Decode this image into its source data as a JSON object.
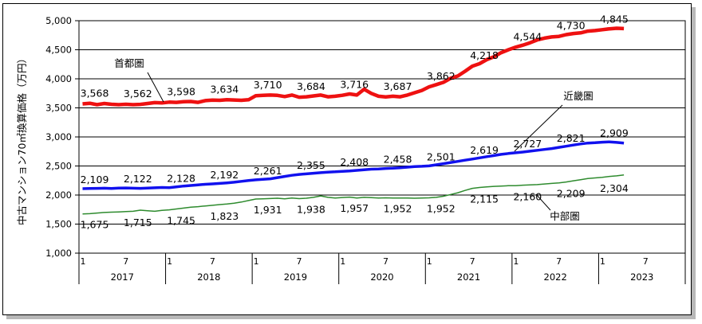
{
  "chart_data": {
    "type": "line",
    "title": "",
    "ylabel": "中古マンション70㎡換算価格（万円）",
    "xlabel": "",
    "ylim": [
      1000,
      5000
    ],
    "yticks": [
      1000,
      1500,
      2000,
      2500,
      3000,
      3500,
      4000,
      4500,
      5000
    ],
    "ytick_labels": [
      "1,000",
      "1,500",
      "2,000",
      "2,500",
      "3,000",
      "3,500",
      "4,000",
      "4,500",
      "5,000"
    ],
    "x_start": "2017-01",
    "month_ticks": [
      "1",
      "7",
      "1",
      "7",
      "1",
      "7",
      "1",
      "7",
      "1",
      "7",
      "1",
      "7",
      "1",
      "7"
    ],
    "years": [
      "2017",
      "2018",
      "2019",
      "2020",
      "2021",
      "2022",
      "2023"
    ],
    "grid": "horizontal",
    "series": [
      {
        "name": "首都圏",
        "color": "#ee1111",
        "values": [
          3568,
          3580,
          3555,
          3575,
          3562,
          3555,
          3562,
          3555,
          3560,
          3575,
          3590,
          3585,
          3598,
          3595,
          3605,
          3610,
          3595,
          3625,
          3634,
          3630,
          3640,
          3635,
          3630,
          3640,
          3710,
          3715,
          3720,
          3715,
          3695,
          3720,
          3684,
          3690,
          3705,
          3720,
          3690,
          3700,
          3716,
          3740,
          3720,
          3820,
          3750,
          3700,
          3687,
          3700,
          3690,
          3720,
          3760,
          3800,
          3862,
          3900,
          3940,
          4010,
          4050,
          4130,
          4218,
          4260,
          4330,
          4380,
          4450,
          4500,
          4544,
          4580,
          4620,
          4670,
          4700,
          4720,
          4730,
          4760,
          4780,
          4790,
          4820,
          4830,
          4845,
          4860,
          4870,
          4865
        ],
        "labels": [
          {
            "x": 0,
            "text": "3,568"
          },
          {
            "x": 6,
            "text": "3,562"
          },
          {
            "x": 12,
            "text": "3,598"
          },
          {
            "x": 18,
            "text": "3,634"
          },
          {
            "x": 24,
            "text": "3,710"
          },
          {
            "x": 30,
            "text": "3,684"
          },
          {
            "x": 36,
            "text": "3,716"
          },
          {
            "x": 42,
            "text": "3,687"
          },
          {
            "x": 48,
            "text": "3,862"
          },
          {
            "x": 54,
            "text": "4,218"
          },
          {
            "x": 60,
            "text": "4,544"
          },
          {
            "x": 66,
            "text": "4,730"
          },
          {
            "x": 72,
            "text": "4,845"
          }
        ]
      },
      {
        "name": "近畿圏",
        "color": "#1111ee",
        "values": [
          2109,
          2112,
          2115,
          2118,
          2112,
          2120,
          2122,
          2118,
          2115,
          2120,
          2125,
          2130,
          2128,
          2140,
          2155,
          2165,
          2175,
          2185,
          2192,
          2200,
          2210,
          2220,
          2235,
          2250,
          2261,
          2270,
          2280,
          2300,
          2320,
          2340,
          2355,
          2365,
          2375,
          2385,
          2395,
          2400,
          2408,
          2415,
          2425,
          2435,
          2445,
          2450,
          2458,
          2462,
          2470,
          2480,
          2490,
          2495,
          2501,
          2520,
          2540,
          2560,
          2580,
          2600,
          2619,
          2640,
          2660,
          2680,
          2700,
          2715,
          2727,
          2740,
          2755,
          2770,
          2785,
          2800,
          2821,
          2840,
          2860,
          2880,
          2895,
          2900,
          2909,
          2915,
          2905,
          2895
        ],
        "labels": [
          {
            "x": 0,
            "text": "2,109"
          },
          {
            "x": 6,
            "text": "2,122"
          },
          {
            "x": 12,
            "text": "2,128"
          },
          {
            "x": 18,
            "text": "2,192"
          },
          {
            "x": 24,
            "text": "2,261"
          },
          {
            "x": 30,
            "text": "2,355"
          },
          {
            "x": 36,
            "text": "2,408"
          },
          {
            "x": 42,
            "text": "2,458"
          },
          {
            "x": 48,
            "text": "2,501"
          },
          {
            "x": 54,
            "text": "2,619"
          },
          {
            "x": 60,
            "text": "2,727"
          },
          {
            "x": 66,
            "text": "2,821"
          },
          {
            "x": 72,
            "text": "2,909"
          }
        ]
      },
      {
        "name": "中部圏",
        "color": "#2e8b2e",
        "values": [
          1675,
          1680,
          1690,
          1700,
          1705,
          1710,
          1715,
          1720,
          1740,
          1730,
          1720,
          1735,
          1745,
          1760,
          1775,
          1790,
          1800,
          1812,
          1823,
          1835,
          1845,
          1860,
          1880,
          1905,
          1931,
          1935,
          1940,
          1945,
          1935,
          1950,
          1938,
          1945,
          1960,
          1985,
          1960,
          1950,
          1957,
          1965,
          1950,
          1960,
          1955,
          1950,
          1952,
          1950,
          1948,
          1950,
          1945,
          1950,
          1952,
          1960,
          1980,
          2010,
          2040,
          2080,
          2115,
          2130,
          2140,
          2150,
          2155,
          2160,
          2160,
          2170,
          2175,
          2180,
          2190,
          2200,
          2209,
          2225,
          2245,
          2265,
          2285,
          2295,
          2304,
          2320,
          2330,
          2345
        ],
        "labels": [
          {
            "x": 0,
            "text": "1,675"
          },
          {
            "x": 6,
            "text": "1,715"
          },
          {
            "x": 12,
            "text": "1,745"
          },
          {
            "x": 18,
            "text": "1,823"
          },
          {
            "x": 24,
            "text": "1,931"
          },
          {
            "x": 30,
            "text": "1,938"
          },
          {
            "x": 36,
            "text": "1,957"
          },
          {
            "x": 42,
            "text": "1,952"
          },
          {
            "x": 48,
            "text": "1,952"
          },
          {
            "x": 54,
            "text": "2,115"
          },
          {
            "x": 60,
            "text": "2,160"
          },
          {
            "x": 66,
            "text": "2,209"
          },
          {
            "x": 72,
            "text": "2,304"
          }
        ]
      }
    ]
  }
}
